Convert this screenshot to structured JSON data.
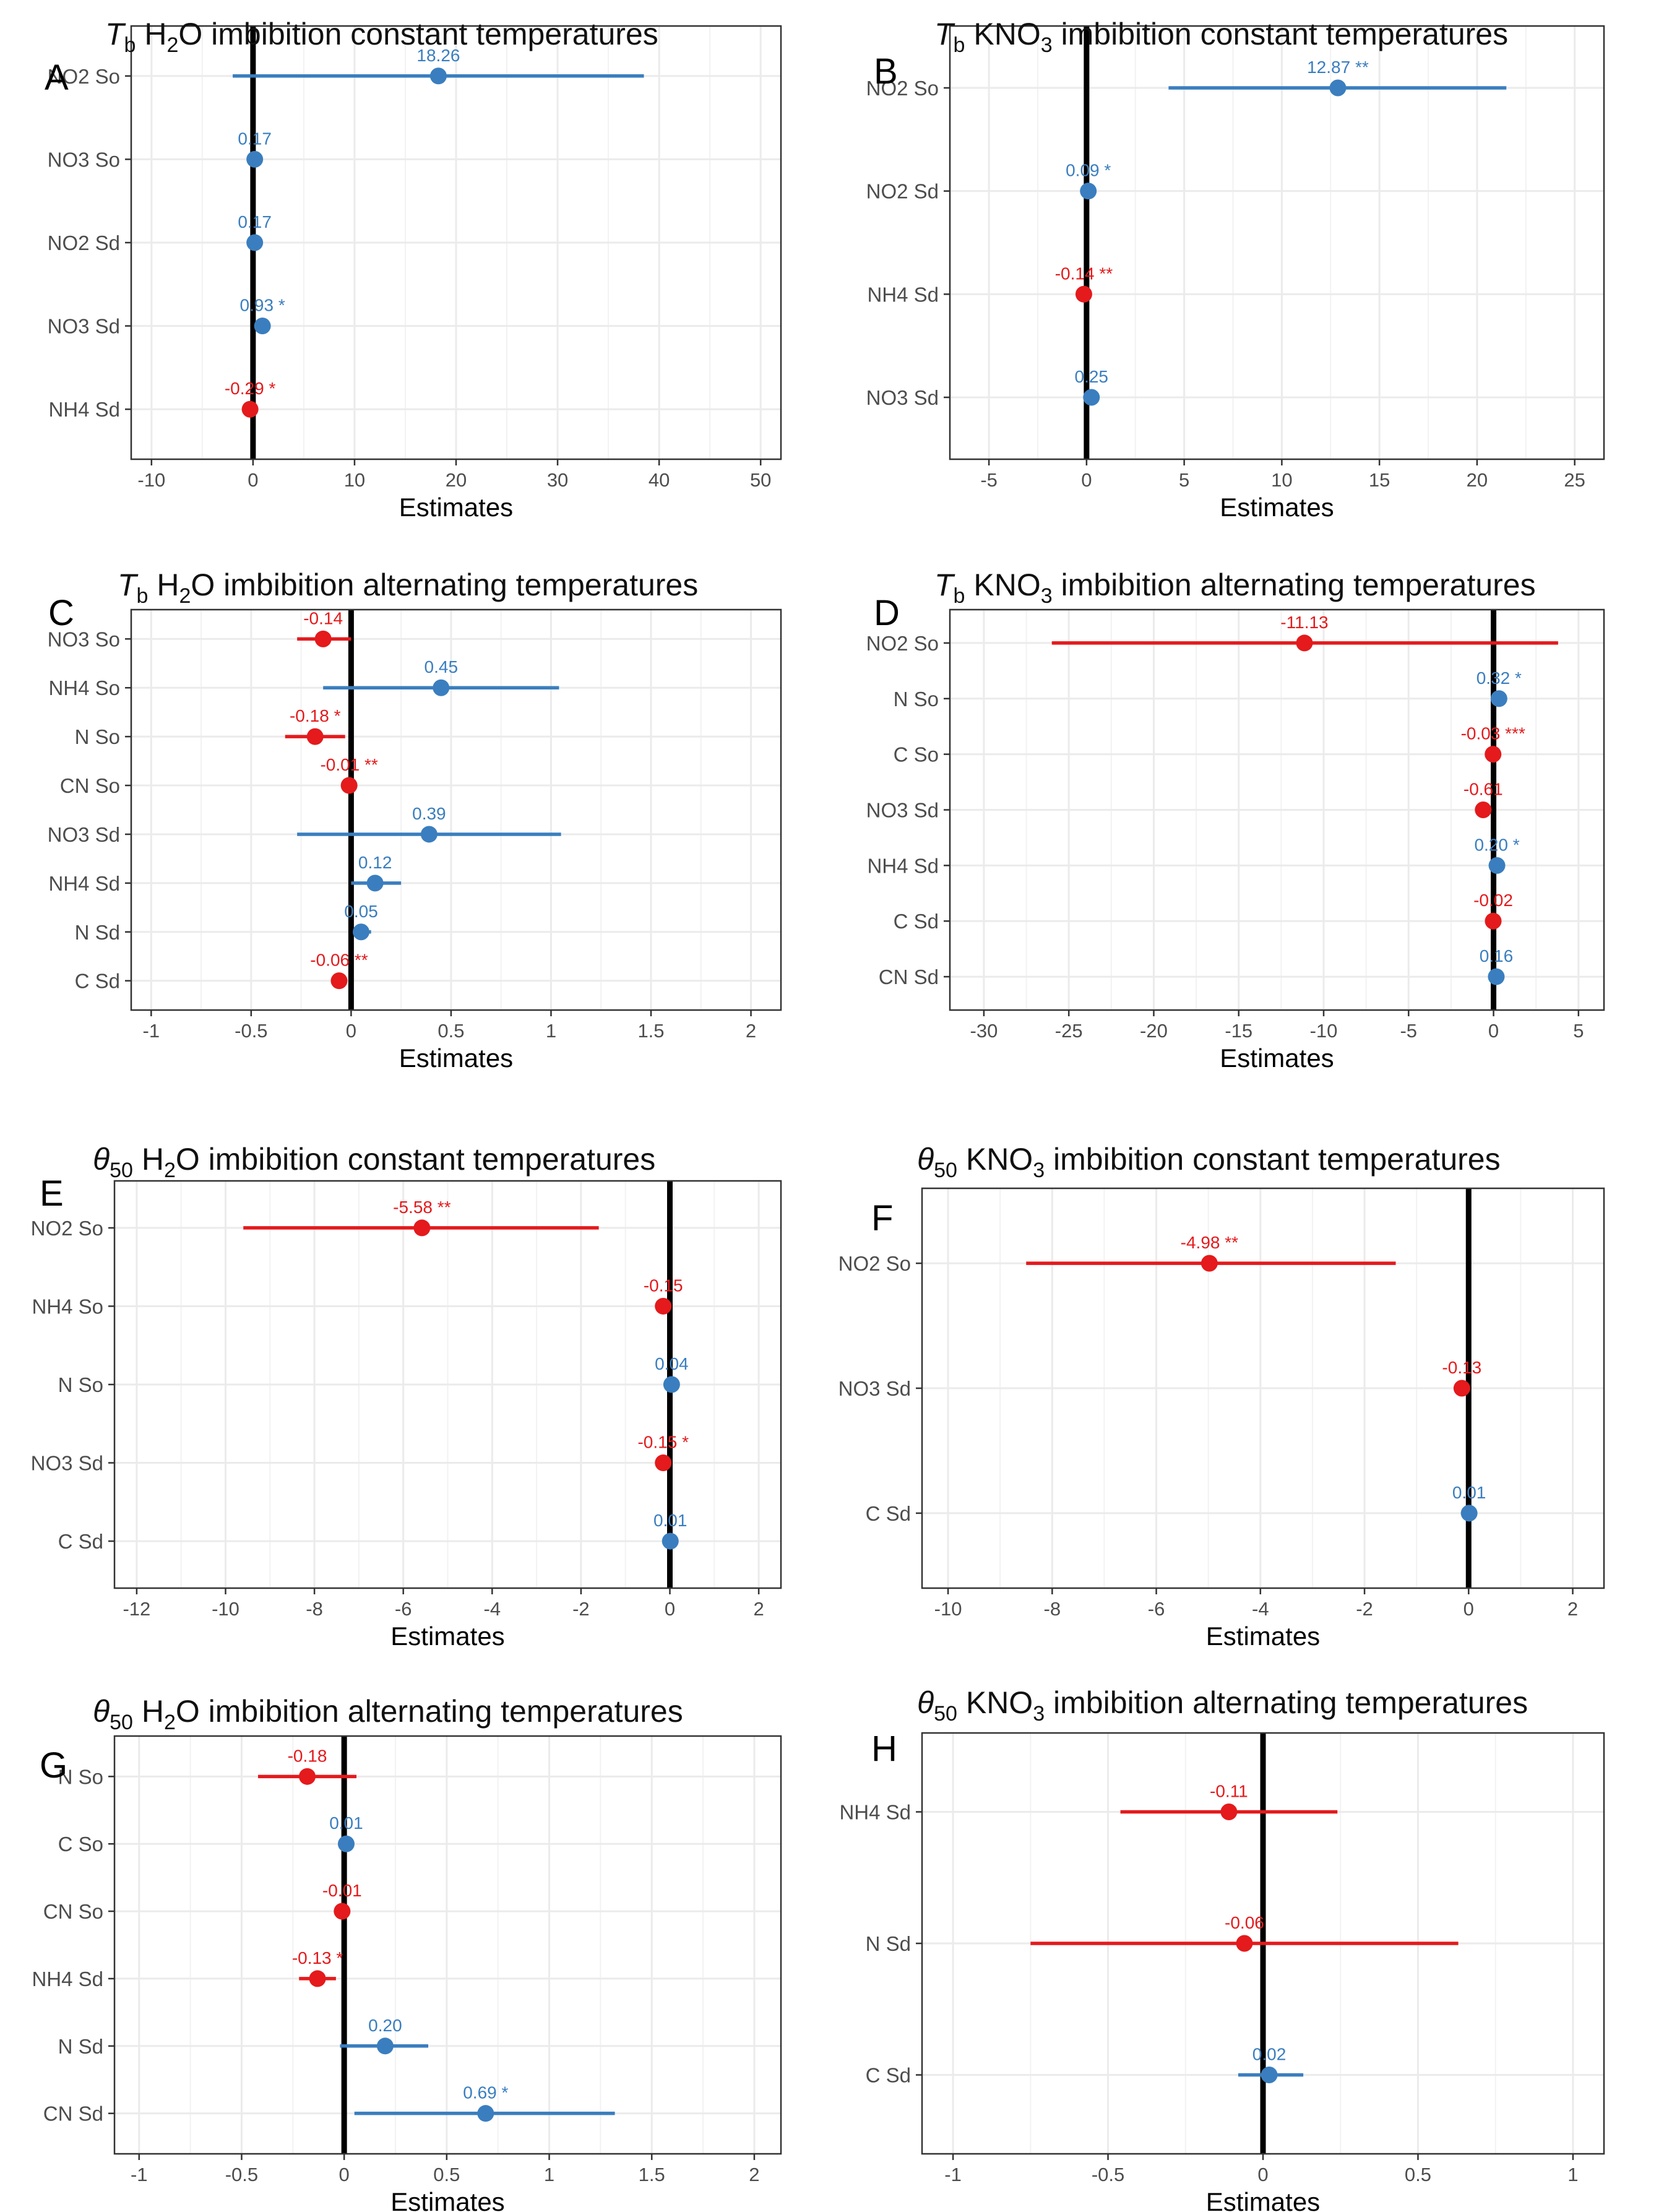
{
  "colors": {
    "positive": "#3a7ebf",
    "negative": "#e41a1c",
    "zero_line": "#000000",
    "grid": "#ebebeb",
    "frame": "#333333"
  },
  "chart_data": [
    {
      "type": "scatter",
      "subtype": "coefficient-plot",
      "panel": "A",
      "title": {
        "symbol": "T",
        "symbol_sub": "b",
        "medium": "H",
        "medium_sub": "2",
        "medium_tail": "O",
        "rest": " imbibition constant temperatures"
      },
      "xlabel": "Estimates",
      "xlim": [
        -12,
        52
      ],
      "ticks": [
        -10,
        0,
        10,
        20,
        30,
        40,
        50
      ],
      "tick_labels": [
        "-10",
        "0",
        "10",
        "20",
        "30",
        "40",
        "50"
      ],
      "rows": [
        {
          "label": "NO2 So",
          "value": 18.26,
          "lo": -2,
          "hi": 38.5,
          "text": "18.26"
        },
        {
          "label": "NO3 So",
          "value": 0.17,
          "text": "0.17"
        },
        {
          "label": "NO2 Sd",
          "value": 0.17,
          "text": "0.17"
        },
        {
          "label": "NO3 Sd",
          "value": 0.93,
          "text": "0.93 *"
        },
        {
          "label": "NH4 Sd",
          "value": -0.29,
          "text": "-0.29 *"
        }
      ]
    },
    {
      "type": "scatter",
      "subtype": "coefficient-plot",
      "panel": "B",
      "title": {
        "symbol": "T",
        "symbol_sub": "b",
        "medium": "KNO",
        "medium_sub": "3",
        "medium_tail": "",
        "rest": "  imbibition constant temperatures"
      },
      "xlabel": "Estimates",
      "xlim": [
        -7,
        26.5
      ],
      "ticks": [
        -5,
        0,
        5,
        10,
        15,
        20,
        25
      ],
      "tick_labels": [
        "-5",
        "0",
        "5",
        "10",
        "15",
        "20",
        "25"
      ],
      "rows": [
        {
          "label": "NO2 So",
          "value": 12.87,
          "lo": 4.2,
          "hi": 21.5,
          "text": "12.87 **"
        },
        {
          "label": "NO2 Sd",
          "value": 0.09,
          "text": "0.09 *"
        },
        {
          "label": "NH4 Sd",
          "value": -0.14,
          "text": "-0.14 **"
        },
        {
          "label": "NO3 Sd",
          "value": 0.25,
          "text": "0.25"
        }
      ]
    },
    {
      "type": "scatter",
      "subtype": "coefficient-plot",
      "panel": "C",
      "title": {
        "symbol": "T",
        "symbol_sub": "b",
        "medium": "H",
        "medium_sub": "2",
        "medium_tail": "O",
        "rest": " imbibition alternating temperatures"
      },
      "xlabel": "Estimates",
      "xlim": [
        -1.1,
        2.15
      ],
      "ticks": [
        -1,
        -0.5,
        0,
        0.5,
        1,
        1.5,
        2
      ],
      "tick_labels": [
        "-1",
        "-0.5",
        "0",
        "0.5",
        "1",
        "1.5",
        "2"
      ],
      "rows": [
        {
          "label": "NO3 So",
          "value": -0.14,
          "lo": -0.27,
          "hi": 0,
          "text": "-0.14"
        },
        {
          "label": "NH4 So",
          "value": 0.45,
          "lo": -0.14,
          "hi": 1.04,
          "text": "0.45"
        },
        {
          "label": "N So",
          "value": -0.18,
          "lo": -0.33,
          "hi": -0.03,
          "text": "-0.18 *"
        },
        {
          "label": "CN So",
          "value": -0.01,
          "text": "-0.01 **"
        },
        {
          "label": "NO3 Sd",
          "value": 0.39,
          "lo": -0.27,
          "hi": 1.05,
          "text": "0.39"
        },
        {
          "label": "NH4 Sd",
          "value": 0.12,
          "lo": 0,
          "hi": 0.25,
          "text": "0.12"
        },
        {
          "label": "N Sd",
          "value": 0.05,
          "lo": 0.01,
          "hi": 0.1,
          "text": "0.05"
        },
        {
          "label": "C Sd",
          "value": -0.06,
          "text": "-0.06 **"
        }
      ]
    },
    {
      "type": "scatter",
      "subtype": "coefficient-plot",
      "panel": "D",
      "title": {
        "symbol": "T",
        "symbol_sub": "b",
        "medium": "KNO",
        "medium_sub": "3",
        "medium_tail": "",
        "rest": "  imbibition alternating temperatures"
      },
      "xlabel": "Estimates",
      "xlim": [
        -32,
        6.5
      ],
      "ticks": [
        -30,
        -25,
        -20,
        -15,
        -10,
        -5,
        0,
        5
      ],
      "tick_labels": [
        "-30",
        "-25",
        "-20",
        "-15",
        "-10",
        "-5",
        "0",
        "5"
      ],
      "rows": [
        {
          "label": "NO2 So",
          "value": -11.13,
          "lo": -26,
          "hi": 3.8,
          "text": "-11.13"
        },
        {
          "label": "N So",
          "value": 0.32,
          "text": "0.32 *"
        },
        {
          "label": "C So",
          "value": -0.03,
          "text": "-0.03 ***"
        },
        {
          "label": "NO3 Sd",
          "value": -0.61,
          "text": "-0.61"
        },
        {
          "label": "NH4 Sd",
          "value": 0.2,
          "text": "0.20 *"
        },
        {
          "label": "C Sd",
          "value": -0.02,
          "text": "-0.02"
        },
        {
          "label": "CN Sd",
          "value": 0.16,
          "text": "0.16"
        }
      ]
    },
    {
      "type": "scatter",
      "subtype": "coefficient-plot",
      "panel": "E",
      "title": {
        "symbol": "θ",
        "symbol_sub": "50",
        "medium": "H",
        "medium_sub": "2",
        "medium_tail": "O",
        "rest": " imbibition constant temperatures"
      },
      "xlabel": "Estimates",
      "xlim": [
        -12.5,
        2.5
      ],
      "ticks": [
        -12,
        -10,
        -8,
        -6,
        -4,
        -2,
        0,
        2
      ],
      "tick_labels": [
        "-12",
        "-10",
        "-8",
        "-6",
        "-4",
        "-2",
        "0",
        "2"
      ],
      "rows": [
        {
          "label": "NO2 So",
          "value": -5.58,
          "lo": -9.6,
          "hi": -1.6,
          "text": "-5.58 **"
        },
        {
          "label": "NH4 So",
          "value": -0.15,
          "text": "-0.15"
        },
        {
          "label": "N So",
          "value": 0.04,
          "text": "0.04"
        },
        {
          "label": "NO3 Sd",
          "value": -0.15,
          "text": "-0.15 *"
        },
        {
          "label": "C Sd",
          "value": 0.01,
          "text": "0.01"
        }
      ]
    },
    {
      "type": "scatter",
      "subtype": "coefficient-plot",
      "panel": "F",
      "title": {
        "symbol": "θ",
        "symbol_sub": "50",
        "medium": "KNO",
        "medium_sub": "3",
        "medium_tail": "",
        "rest": "  imbibition constant temperatures"
      },
      "xlabel": "Estimates",
      "xlim": [
        -10.5,
        2.6
      ],
      "ticks": [
        -10,
        -8,
        -6,
        -4,
        -2,
        0,
        2
      ],
      "tick_labels": [
        "-10",
        "-8",
        "-6",
        "-4",
        "-2",
        "0",
        "2"
      ],
      "rows": [
        {
          "label": "NO2 So",
          "value": -4.98,
          "lo": -8.5,
          "hi": -1.4,
          "text": "-4.98 **"
        },
        {
          "label": "NO3 Sd",
          "value": -0.13,
          "text": "-0.13"
        },
        {
          "label": "C Sd",
          "value": 0.01,
          "text": "0.01"
        }
      ]
    },
    {
      "type": "scatter",
      "subtype": "coefficient-plot",
      "panel": "G",
      "title": {
        "symbol": "θ",
        "symbol_sub": "50",
        "medium": "H",
        "medium_sub": "2",
        "medium_tail": "O",
        "rest": " imbibition alternating temperatures"
      },
      "xlabel": "Estimates",
      "xlim": [
        -1.12,
        2.13
      ],
      "ticks": [
        -1,
        -0.5,
        0,
        0.5,
        1,
        1.5,
        2
      ],
      "tick_labels": [
        "-1",
        "-0.5",
        "0",
        "0.5",
        "1",
        "1.5",
        "2"
      ],
      "rows": [
        {
          "label": "N So",
          "value": -0.18,
          "lo": -0.42,
          "hi": 0.06,
          "text": "-0.18"
        },
        {
          "label": "C So",
          "value": 0.01,
          "text": "0.01"
        },
        {
          "label": "CN So",
          "value": -0.01,
          "text": "-0.01"
        },
        {
          "label": "NH4 Sd",
          "value": -0.13,
          "lo": -0.22,
          "hi": -0.04,
          "text": "-0.13 *"
        },
        {
          "label": "N Sd",
          "value": 0.2,
          "lo": -0.02,
          "hi": 0.41,
          "text": "0.20"
        },
        {
          "label": "CN Sd",
          "value": 0.69,
          "lo": 0.05,
          "hi": 1.32,
          "text": "0.69 *"
        }
      ]
    },
    {
      "type": "scatter",
      "subtype": "coefficient-plot",
      "panel": "H",
      "title": {
        "symbol": "θ",
        "symbol_sub": "50",
        "medium": "KNO",
        "medium_sub": "3",
        "medium_tail": "",
        "rest": "  imbibition alternating temperatures"
      },
      "xlabel": "Estimates",
      "xlim": [
        -1.1,
        1.1
      ],
      "ticks": [
        -1,
        -0.5,
        0,
        0.5,
        1
      ],
      "tick_labels": [
        "-1",
        "-0.5",
        "0",
        "0.5",
        "1"
      ],
      "rows": [
        {
          "label": "NH4 Sd",
          "value": -0.11,
          "lo": -0.46,
          "hi": 0.24,
          "text": "-0.11"
        },
        {
          "label": "N Sd",
          "value": -0.06,
          "lo": -0.75,
          "hi": 0.63,
          "text": "-0.06"
        },
        {
          "label": "C Sd",
          "value": 0.02,
          "lo": -0.08,
          "hi": 0.13,
          "text": "0.02"
        }
      ]
    }
  ]
}
